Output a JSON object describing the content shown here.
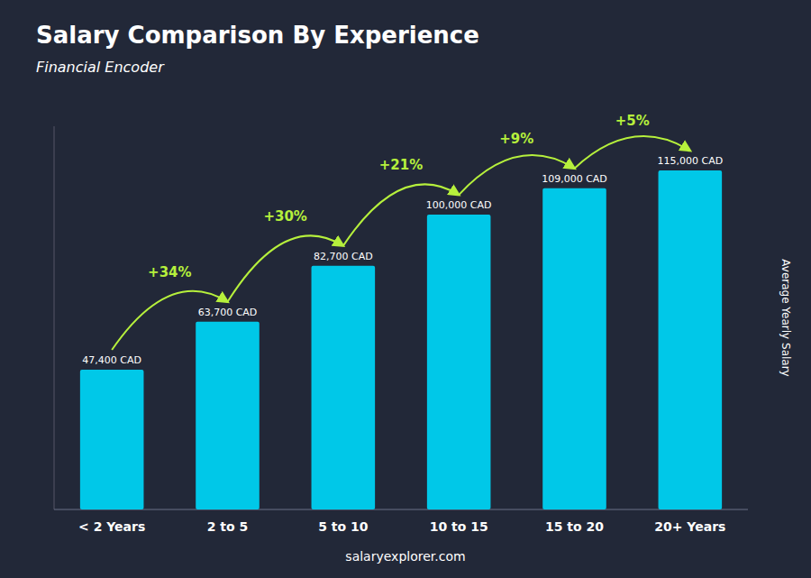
{
  "chart_data": {
    "type": "bar",
    "title": "Salary Comparison By Experience",
    "subtitle": "Financial Encoder",
    "ylabel": "Average Yearly Salary",
    "footer": "salaryexplorer.com",
    "categories": [
      "< 2 Years",
      "2 to 5",
      "5 to 10",
      "10 to 15",
      "15 to 20",
      "20+ Years"
    ],
    "values": [
      47400,
      63700,
      82700,
      100000,
      109000,
      115000
    ],
    "value_labels": [
      "47,400 CAD",
      "63,700 CAD",
      "82,700 CAD",
      "100,000 CAD",
      "109,000 CAD",
      "115,000 CAD"
    ],
    "data_labels": true,
    "annotations": [
      "+34%",
      "+30%",
      "+21%",
      "+9%",
      "+5%"
    ],
    "color": "#00c8e8",
    "ylim": [
      0,
      130000
    ],
    "tick_labels": "x",
    "grid": false
  }
}
